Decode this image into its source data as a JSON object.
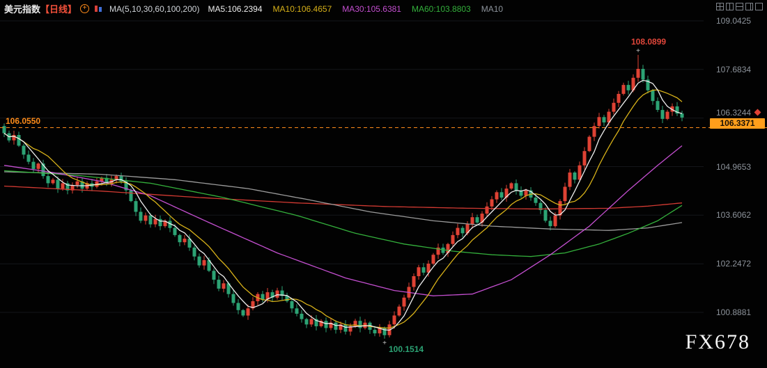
{
  "header": {
    "title": "美元指数",
    "period": "【日线】",
    "add_icon_glyph": "+",
    "ma_function": "MA(5,10,30,60,100,200)",
    "ma_values": [
      {
        "label": "MA5:106.2394",
        "color": "#efefef"
      },
      {
        "label": "MA10:106.4657",
        "color": "#d7b119"
      },
      {
        "label": "MA30:105.6381",
        "color": "#c44fd0"
      },
      {
        "label": "MA60:103.8803",
        "color": "#34b13c"
      },
      {
        "label": "MA10",
        "color": "#8d949c"
      }
    ]
  },
  "toolbar": {
    "icons": [
      "layout-grid",
      "layout-split-vertical",
      "layout-split-horizontal",
      "layout-right-pane",
      "layout-single"
    ]
  },
  "annotations": {
    "high": {
      "text": "108.0899",
      "color": "#e0463a"
    },
    "low": {
      "text": "100.1514",
      "color": "#2ca374"
    },
    "alert": {
      "text": "106.0550",
      "color": "#ff8c1a"
    },
    "last_price": {
      "text": "106.3371",
      "bg": "#ff9e1b",
      "color": "#161006"
    }
  },
  "watermark": "FX678",
  "chart_data": {
    "type": "candlestick",
    "symbol": "美元指数",
    "timeframe": "日线",
    "y_axis": {
      "ticks": [
        109.0425,
        107.6834,
        106.3244,
        104.9653,
        103.6062,
        102.2472,
        100.8881
      ]
    },
    "first_open": 106.1,
    "closes": [
      105.9,
      105.7,
      105.85,
      105.55,
      105.3,
      105.1,
      104.9,
      105.05,
      104.7,
      104.5,
      104.6,
      104.35,
      104.5,
      104.3,
      104.45,
      104.55,
      104.35,
      104.5,
      104.4,
      104.55,
      104.65,
      104.5,
      104.6,
      104.7,
      104.55,
      104.3,
      104.0,
      103.7,
      103.45,
      103.6,
      103.35,
      103.5,
      103.3,
      103.45,
      103.25,
      103.05,
      102.85,
      102.95,
      102.7,
      102.45,
      102.2,
      102.35,
      102.05,
      101.8,
      101.55,
      101.7,
      101.4,
      101.15,
      100.95,
      100.8,
      101.0,
      101.2,
      101.4,
      101.25,
      101.45,
      101.3,
      101.5,
      101.35,
      101.2,
      101.0,
      100.85,
      100.7,
      100.55,
      100.7,
      100.5,
      100.65,
      100.45,
      100.6,
      100.4,
      100.55,
      100.35,
      100.5,
      100.65,
      100.45,
      100.6,
      100.4,
      100.3,
      100.45,
      100.25,
      100.55,
      100.8,
      101.05,
      101.3,
      101.6,
      101.9,
      102.15,
      102.0,
      102.25,
      102.5,
      102.7,
      102.55,
      102.8,
      103.05,
      103.25,
      103.1,
      103.35,
      103.55,
      103.4,
      103.65,
      103.85,
      104.05,
      104.25,
      104.1,
      104.35,
      104.5,
      104.3,
      104.15,
      104.3,
      104.1,
      103.95,
      103.75,
      103.45,
      103.3,
      103.6,
      104.0,
      104.4,
      104.8,
      104.6,
      105.0,
      105.4,
      105.8,
      106.1,
      106.35,
      106.2,
      106.5,
      106.75,
      107.0,
      107.25,
      107.1,
      107.45,
      107.7,
      107.4,
      107.1,
      106.8,
      106.55,
      106.3,
      106.5,
      106.65,
      106.45,
      106.3371
    ],
    "extremes": {
      "high_index": 130,
      "high": 108.0899,
      "low_index": 78,
      "low": 100.1514
    },
    "extreme_marker_glyph": "+",
    "last_price": 106.3371,
    "alert_line": 106.055,
    "alert_color": "#ff8c1a",
    "colors": {
      "up": "#df4234",
      "down": "#2ca374"
    },
    "ma_lines": [
      {
        "name": "MA200",
        "color": "#d23a32",
        "points": [
          [
            0,
            104.42
          ],
          [
            20,
            104.28
          ],
          [
            40,
            104.1
          ],
          [
            60,
            103.95
          ],
          [
            78,
            103.85
          ],
          [
            95,
            103.8
          ],
          [
            110,
            103.78
          ],
          [
            124,
            103.8
          ],
          [
            132,
            103.86
          ],
          [
            139,
            103.95
          ]
        ]
      },
      {
        "name": "MA100",
        "color": "#9b9b9b",
        "points": [
          [
            0,
            104.82
          ],
          [
            20,
            104.75
          ],
          [
            35,
            104.6
          ],
          [
            50,
            104.35
          ],
          [
            62,
            104.05
          ],
          [
            75,
            103.7
          ],
          [
            88,
            103.45
          ],
          [
            100,
            103.3
          ],
          [
            112,
            103.22
          ],
          [
            124,
            103.18
          ],
          [
            132,
            103.25
          ],
          [
            139,
            103.4
          ]
        ]
      },
      {
        "name": "MA60",
        "color": "#34b13c",
        "points": [
          [
            0,
            104.85
          ],
          [
            15,
            104.72
          ],
          [
            30,
            104.5
          ],
          [
            45,
            104.1
          ],
          [
            60,
            103.6
          ],
          [
            72,
            103.1
          ],
          [
            82,
            102.8
          ],
          [
            92,
            102.6
          ],
          [
            100,
            102.5
          ],
          [
            108,
            102.45
          ],
          [
            115,
            102.55
          ],
          [
            122,
            102.8
          ],
          [
            128,
            103.1
          ],
          [
            134,
            103.45
          ],
          [
            139,
            103.88
          ]
        ]
      },
      {
        "name": "MA30",
        "color": "#c44fd0",
        "points": [
          [
            0,
            105.0
          ],
          [
            10,
            104.8
          ],
          [
            20,
            104.55
          ],
          [
            30,
            104.15
          ],
          [
            42,
            103.4
          ],
          [
            56,
            102.55
          ],
          [
            70,
            101.85
          ],
          [
            80,
            101.5
          ],
          [
            88,
            101.35
          ],
          [
            96,
            101.4
          ],
          [
            104,
            101.8
          ],
          [
            112,
            102.5
          ],
          [
            120,
            103.3
          ],
          [
            128,
            104.3
          ],
          [
            134,
            105.0
          ],
          [
            139,
            105.55
          ]
        ]
      },
      {
        "name": "MA10",
        "color": "#d7b119",
        "period": 10
      },
      {
        "name": "MA5",
        "color": "#efefef",
        "period": 5
      }
    ]
  }
}
